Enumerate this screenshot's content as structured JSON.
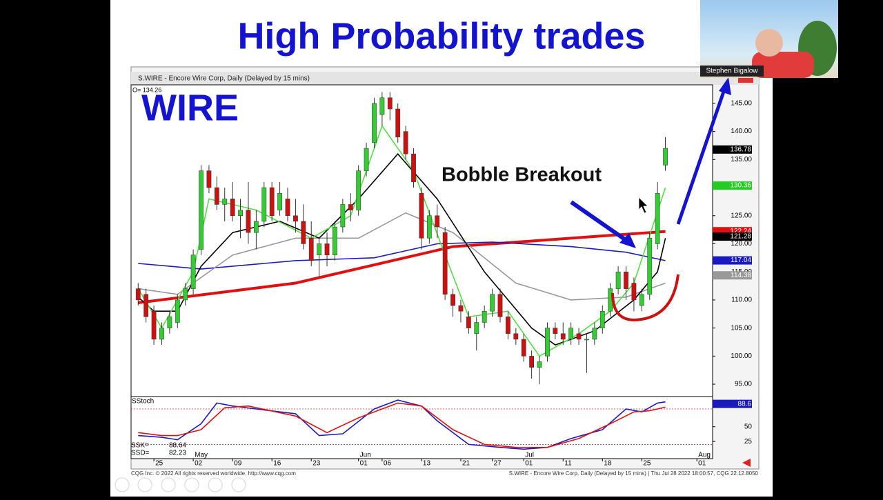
{
  "slide": {
    "title": "High Probability trades",
    "presenter": "Stephen Bigalow",
    "footer_left": "CQG Inc. © 2022 All rights reserved worldwide. http://www.cqg.com",
    "footer_right": "S.WIRE - Encore Wire Corp, Daily (Delayed by 15 mins) | Thu Jul 28 2022 18:00:57, CQG 22.12.8050"
  },
  "chart_data": [
    {
      "type": "candlestick",
      "title": "S.WIRE - Encore Wire Corp, Daily (Delayed by 15 mins)",
      "annotations": [
        "WIRE",
        "Bobble Breakout"
      ],
      "readout": "O= 134.26",
      "up_color": "#33cc33",
      "down_color": "#cc1111",
      "x": [
        0,
        1,
        2,
        3,
        4,
        5,
        6,
        7,
        8,
        9,
        10,
        11,
        12,
        13,
        14,
        15,
        16,
        17,
        18,
        19,
        20,
        21,
        22,
        23,
        24,
        25,
        26,
        27,
        28,
        29,
        30,
        31,
        32,
        33,
        34,
        35,
        36,
        37,
        38,
        39,
        40,
        41,
        42,
        43,
        44,
        45,
        46,
        47,
        48,
        49,
        50,
        51,
        52,
        53,
        54,
        55,
        56,
        57,
        58,
        59,
        60,
        61,
        62,
        63,
        64,
        65,
        66,
        67
      ],
      "open": [
        112,
        111,
        108,
        103,
        105,
        106,
        110,
        112,
        119,
        133,
        130,
        127,
        128,
        125,
        126,
        122,
        124,
        130,
        126,
        128,
        125,
        124,
        121,
        118,
        120,
        118,
        123,
        127,
        126,
        133,
        138,
        143,
        146,
        144,
        140,
        136,
        129,
        121,
        125,
        122,
        111,
        109,
        107,
        104,
        106,
        108,
        111,
        107,
        104,
        103,
        100,
        98,
        100,
        105,
        104,
        103,
        104,
        103,
        103,
        105,
        108,
        112,
        115,
        113,
        109,
        111,
        120,
        134
      ],
      "high": [
        113,
        112,
        109,
        106,
        108,
        111,
        113,
        119,
        134,
        134,
        132,
        130,
        131,
        128,
        131,
        126,
        131,
        131,
        131,
        130,
        128,
        127,
        124,
        121,
        122,
        124,
        128,
        129,
        134,
        138,
        146,
        147,
        147,
        145,
        141,
        137,
        130,
        126,
        127,
        123,
        112,
        110,
        108,
        107,
        109,
        112,
        112,
        108,
        105,
        104,
        101,
        100,
        106,
        106,
        106,
        106,
        105,
        104,
        106,
        109,
        113,
        116,
        116,
        114,
        112,
        122,
        131,
        139
      ],
      "low": [
        109,
        106,
        102,
        102,
        104,
        105,
        109,
        111,
        118,
        129,
        126,
        124,
        124,
        121,
        120,
        119,
        123,
        124,
        125,
        124,
        122,
        119,
        116,
        114,
        116,
        117,
        122,
        124,
        125,
        132,
        137,
        141,
        142,
        138,
        135,
        130,
        119,
        120,
        121,
        110,
        107,
        106,
        104,
        101,
        105,
        107,
        106,
        103,
        102,
        99,
        96,
        95,
        99,
        103,
        102,
        102,
        102,
        97,
        102,
        104,
        107,
        111,
        110,
        108,
        108,
        110,
        119,
        133
      ],
      "close": [
        110,
        107,
        103,
        105,
        107,
        110,
        112,
        118,
        133,
        130,
        127,
        128,
        125,
        126,
        122,
        124,
        130,
        125,
        129,
        125,
        124,
        120,
        117,
        120,
        118,
        123,
        127,
        126,
        133,
        137,
        145,
        146,
        144,
        139,
        136,
        131,
        121,
        125,
        123,
        111,
        109,
        108,
        105,
        106,
        108,
        111,
        107,
        104,
        103,
        100,
        98,
        99,
        105,
        104,
        103,
        105,
        103,
        103,
        105,
        108,
        112,
        115,
        112,
        110,
        111,
        121,
        129,
        137
      ],
      "lines": [
        {
          "color": "#e01010",
          "x": [
            0,
            20,
            40,
            60,
            67
          ],
          "values": [
            109.5,
            113,
            119.5,
            121.5,
            122.2
          ]
        },
        {
          "color": "#1a1ac0",
          "x": [
            0,
            8,
            20,
            30,
            38,
            45,
            55,
            62,
            67
          ],
          "values": [
            116.5,
            115.5,
            117,
            117.5,
            120,
            120.3,
            119.5,
            118.5,
            117
          ]
        },
        {
          "color": "#999999",
          "x": [
            0,
            5,
            12,
            20,
            28,
            34,
            40,
            48,
            55,
            62,
            67
          ],
          "values": [
            112,
            111,
            118,
            121,
            121,
            125.5,
            122,
            113,
            110,
            110.5,
            113
          ]
        },
        {
          "color": "#000000",
          "x": [
            0,
            2,
            5,
            8,
            12,
            18,
            23,
            28,
            33,
            38,
            44,
            50,
            53,
            58,
            63,
            66,
            67
          ],
          "values": [
            110.5,
            108,
            108,
            116,
            122,
            124,
            121,
            128,
            136,
            128,
            115,
            105,
            102,
            104.5,
            110,
            115,
            121
          ]
        },
        {
          "color": "#55dd44",
          "x": [
            0,
            3,
            7,
            9,
            15,
            22,
            27,
            31,
            35,
            39,
            42,
            47,
            51,
            56,
            60,
            63,
            67
          ],
          "values": [
            112,
            105,
            115,
            128,
            126,
            121,
            125,
            141,
            133,
            118,
            107,
            108,
            100,
            104,
            108,
            113,
            130
          ]
        }
      ],
      "price_labels": [
        {
          "value": 136.78,
          "color": "#000000"
        },
        {
          "value": 130.36,
          "color": "#22cc22"
        },
        {
          "value": 122.24,
          "color": "#e01010"
        },
        {
          "value": 121.28,
          "color": "#000000"
        },
        {
          "value": 117.04,
          "color": "#1a1ac0"
        },
        {
          "value": 114.38,
          "color": "#999999"
        }
      ],
      "ylim": [
        92.8,
        148.3
      ],
      "yticks": [
        {
          "value": 95,
          "label": "95.00"
        },
        {
          "value": 100,
          "label": "100.00"
        },
        {
          "value": 105,
          "label": "105.00"
        },
        {
          "value": 110,
          "label": "110.00"
        },
        {
          "value": 115,
          "label": "115.00"
        },
        {
          "value": 120,
          "label": "120.00"
        },
        {
          "value": 125,
          "label": "125.00"
        },
        {
          "value": 130,
          "label": "130.00"
        },
        {
          "value": 135,
          "label": "135.00"
        },
        {
          "value": 140,
          "label": "140.00"
        },
        {
          "value": 145,
          "label": "145.00"
        }
      ],
      "xlim": [
        -0.9,
        73
      ],
      "xticks": [
        {
          "value": 2,
          "label": "25"
        },
        {
          "value": 7,
          "label": "02"
        },
        {
          "value": 12,
          "label": "09"
        },
        {
          "value": 17,
          "label": "16"
        },
        {
          "value": 22,
          "label": "23"
        },
        {
          "value": 28,
          "label": "01"
        },
        {
          "value": 31,
          "label": "06"
        },
        {
          "value": 36,
          "label": "13"
        },
        {
          "value": 41,
          "label": "21"
        },
        {
          "value": 45,
          "label": "27"
        },
        {
          "value": 49,
          "label": "01"
        },
        {
          "value": 54,
          "label": "11"
        },
        {
          "value": 59,
          "label": "18"
        },
        {
          "value": 64,
          "label": "25"
        },
        {
          "value": 71,
          "label": "01"
        }
      ],
      "month_ticks": [
        {
          "value": 7,
          "label": "May"
        },
        {
          "value": 28,
          "label": "Jun"
        },
        {
          "value": 49,
          "label": "Jul"
        },
        {
          "value": 71,
          "label": "Aug"
        }
      ]
    },
    {
      "type": "line",
      "title": "SStoch",
      "series": [
        {
          "name": "SSK=",
          "readout": 88.64,
          "color": "#1a1ac0",
          "x": [
            0,
            3,
            5,
            8,
            10,
            12,
            15,
            20,
            23,
            26,
            30,
            33,
            36,
            38,
            42,
            46,
            49,
            52,
            55,
            59,
            62,
            64,
            66,
            67
          ],
          "values": [
            35,
            32,
            28,
            55,
            90,
            85,
            80,
            72,
            35,
            38,
            80,
            95,
            85,
            60,
            20,
            15,
            12,
            15,
            30,
            45,
            80,
            75,
            90,
            92
          ]
        },
        {
          "name": "SSD=",
          "readout": 82.23,
          "color": "#e01010",
          "x": [
            0,
            3,
            5,
            8,
            11,
            14,
            20,
            24,
            28,
            33,
            36,
            40,
            44,
            48,
            52,
            56,
            60,
            63,
            65,
            67
          ],
          "values": [
            40,
            35,
            35,
            45,
            82,
            85,
            68,
            40,
            65,
            90,
            85,
            45,
            20,
            15,
            15,
            30,
            55,
            75,
            77,
            83
          ]
        }
      ],
      "levels": [
        80,
        20
      ],
      "price_labels": [
        {
          "value": 88.6,
          "color": "#1a1ac0"
        }
      ],
      "ylim": [
        -4,
        101
      ],
      "yticks": [
        25,
        50
      ],
      "xlim": [
        -0.9,
        73
      ]
    }
  ]
}
